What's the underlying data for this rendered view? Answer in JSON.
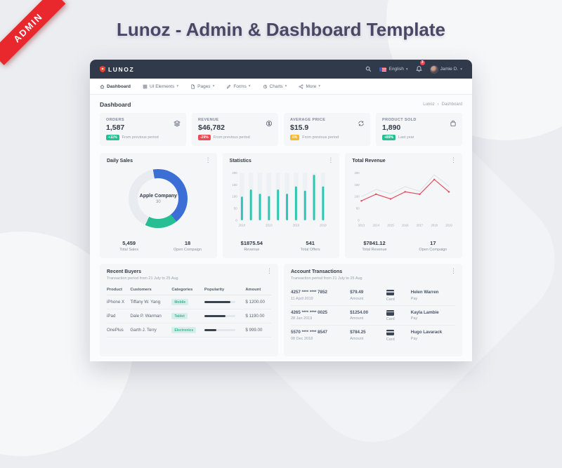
{
  "ribbon": {
    "label": "ADMIN"
  },
  "hero": {
    "title": "Lunoz - Admin & Dashboard Template"
  },
  "colors": {
    "ribbon_red": "#e8282d",
    "navbar": "#303a4b",
    "accent_teal": "#26bf94",
    "accent_blue": "#3b6fd6",
    "accent_red": "#ee4a55",
    "accent_orange": "#f7b731",
    "line_red": "#e25563",
    "bar_teal": "#2cc4b2",
    "title_navy": "#4a4766"
  },
  "navbar": {
    "logo_text": "LUNOZ",
    "language": "English",
    "notification_count": "3",
    "user_name": "Jamie D.",
    "caret": "▾"
  },
  "menu": {
    "items": [
      {
        "label": "Dashboard"
      },
      {
        "label": "UI Elements"
      },
      {
        "label": "Pages"
      },
      {
        "label": "Forms"
      },
      {
        "label": "Charts"
      },
      {
        "label": "More"
      }
    ]
  },
  "content_header": {
    "title": "Dashboard",
    "breadcrumb_root": "Lunoz",
    "breadcrumb_sep": "›",
    "breadcrumb_current": "Dashboard",
    "menu_dots": "⋮"
  },
  "stats": [
    {
      "label": "ORDERS",
      "value": "1,587",
      "badge": "+11%",
      "badge_color": "#26bf94",
      "note": "From previous period"
    },
    {
      "label": "REVENUE",
      "value": "$46,782",
      "badge": "-29%",
      "badge_color": "#ee4a55",
      "note": "From previous period"
    },
    {
      "label": "AVERAGE PRICE",
      "value": "$15.9",
      "badge": "0%",
      "badge_color": "#f7b731",
      "note": "From previous period"
    },
    {
      "label": "PRODUCT SOLD",
      "value": "1,890",
      "badge": "+89%",
      "badge_color": "#26bf94",
      "note": "Last year"
    }
  ],
  "daily_sales": {
    "title": "Daily Sales",
    "center_label": "Apple Company",
    "center_value": "30",
    "stat1_value": "5,459",
    "stat1_label": "Total Sales",
    "stat2_value": "18",
    "stat2_label": "Open Compaign"
  },
  "statistics": {
    "title": "Statistics",
    "stat1_value": "$1875.54",
    "stat1_label": "Revenue",
    "stat2_value": "541",
    "stat2_label": "Total Offers"
  },
  "total_revenue": {
    "title": "Total Revenue",
    "stat1_value": "$7841.12",
    "stat1_label": "Total Revenue",
    "stat2_value": "17",
    "stat2_label": "Open Compaign"
  },
  "chart_data": [
    {
      "type": "pie",
      "title": "Daily Sales",
      "slices": [
        {
          "label": "Segment A",
          "value": 42,
          "color": "#3b6fd6"
        },
        {
          "label": "Segment B",
          "value": 18,
          "color": "#26bf94"
        },
        {
          "label": "Remainder",
          "value": 40,
          "color": "#e8ecf0"
        }
      ],
      "center_label": "Apple Company",
      "center_value": 30
    },
    {
      "type": "bar",
      "title": "Statistics",
      "x": [
        2010,
        2011,
        2012,
        2013,
        2014,
        2015,
        2016,
        2017,
        2018,
        2019
      ],
      "values": [
        100,
        130,
        112,
        102,
        130,
        112,
        143,
        125,
        192,
        143
      ],
      "xticks": [
        2010,
        2013,
        2016,
        2019
      ],
      "yticks": [
        0,
        50,
        100,
        150,
        200
      ],
      "ylim": [
        0,
        200
      ],
      "color": "#2cc4b2"
    },
    {
      "type": "line",
      "title": "Total Revenue",
      "x": [
        2013,
        2014,
        2015,
        2016,
        2017,
        2018,
        2019
      ],
      "series": [
        {
          "name": "reference",
          "values": [
            100,
            130,
            112,
            142,
            122,
            192,
            143
          ],
          "color": "#dde1e7",
          "markers": false
        },
        {
          "name": "revenue",
          "values": [
            82,
            110,
            90,
            120,
            110,
            172,
            120
          ],
          "color": "#e25563",
          "markers": true
        }
      ],
      "xticks": [
        2013,
        2014,
        2015,
        2016,
        2017,
        2018,
        2019
      ],
      "yticks": [
        0,
        50,
        100,
        150,
        200
      ],
      "ylim": [
        0,
        200
      ]
    }
  ],
  "recent_buyers": {
    "title": "Recent Buyers",
    "subtitle": "Transaction period from 21 July to 25 Aug",
    "columns": [
      "Product",
      "Customers",
      "Categories",
      "Popularity",
      "Amount"
    ],
    "rows": [
      {
        "product": "iPhone X",
        "customer": "Tiffany W. Yang",
        "category": "Mobile",
        "popularity": 85,
        "amount": "$ 1200.00"
      },
      {
        "product": "iPad",
        "customer": "Dale P. Warman",
        "category": "Tablet",
        "popularity": 68,
        "amount": "$ 1190.00"
      },
      {
        "product": "OnePlus",
        "customer": "Garth J. Terry",
        "category": "Electronics",
        "popularity": 40,
        "amount": "$ 999.00"
      }
    ]
  },
  "transactions": {
    "title": "Account Transactions",
    "subtitle": "Transaction period from 21 July to 25 Aug",
    "rows": [
      {
        "card_number": "4257 **** **** 7852",
        "date": "11 April 2019",
        "amount": "$79.49",
        "amount_label": "Amount",
        "card_label": "Card",
        "name": "Helen Warren",
        "pay_label": "Pay"
      },
      {
        "card_number": "4265 **** **** 0025",
        "date": "28 Jan 2019",
        "amount": "$1254.00",
        "amount_label": "Amount",
        "card_label": "Card",
        "name": "Kayla Lambie",
        "pay_label": "Pay"
      },
      {
        "card_number": "5570 **** **** 8547",
        "date": "08 Dec 2018",
        "amount": "$784.25",
        "amount_label": "Amount",
        "card_label": "Card",
        "name": "Hugo Lavarack",
        "pay_label": "Pay"
      }
    ]
  }
}
